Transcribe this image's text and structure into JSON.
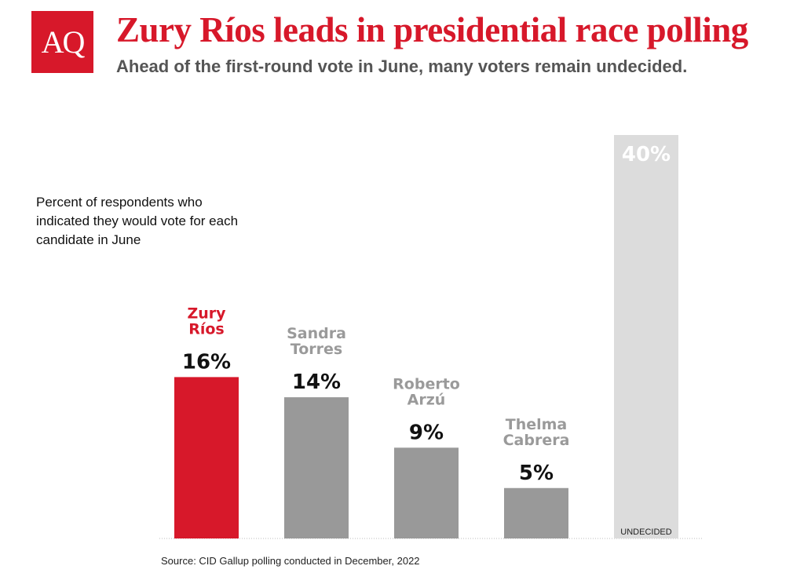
{
  "logo": {
    "text": "AQ"
  },
  "header": {
    "title": "Zury Ríos leads in presidential race polling",
    "subtitle": "Ahead of the first-round vote in June, many voters remain undecided."
  },
  "note": "Percent of respondents who indicated they would vote for each candidate in June",
  "source": "Source: CID Gallup polling conducted in December, 2022",
  "colors": {
    "highlight": "#d7182a",
    "candidate": "#999999",
    "undecided": "#dcdcdc",
    "candidate_label": "#9a9a9a",
    "value_label": "#111111",
    "undecided_value": "#ffffff"
  },
  "chart_data": {
    "type": "bar",
    "categories": [
      [
        "Zury",
        "Ríos"
      ],
      [
        "Sandra",
        "Torres"
      ],
      [
        "Roberto",
        "Arzú"
      ],
      [
        "Thelma",
        "Cabrera"
      ],
      [
        "UNDECIDED"
      ]
    ],
    "values": [
      16,
      14,
      9,
      5,
      40
    ],
    "value_labels": [
      "16%",
      "14%",
      "9%",
      "5%",
      "40%"
    ],
    "unit": "%",
    "ylim": [
      0,
      40
    ],
    "grid": false,
    "legend": "none"
  }
}
